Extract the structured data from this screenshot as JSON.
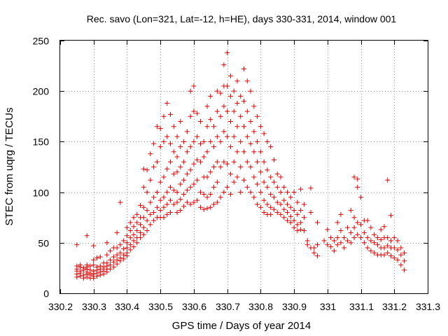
{
  "chart_data": {
    "type": "scatter",
    "title": "Rec. savo (Lon=321, Lat=-12, h=HE), days 330-331, 2014, window 001",
    "xlabel": "GPS time / Days of year 2014",
    "ylabel": "STEC from uqrg / TECUs",
    "xlim": [
      330.2,
      331.3
    ],
    "ylim": [
      0,
      250
    ],
    "grid": true,
    "xticks": [
      "330.2",
      "330.3",
      "330.4",
      "330.5",
      "330.6",
      "330.7",
      "330.8",
      "330.9",
      "331",
      "331.1",
      "331.2",
      "331.3"
    ],
    "yticks": [
      "0",
      "50",
      "100",
      "150",
      "200",
      "250"
    ],
    "marker": "+",
    "color": "#e00000",
    "points": [
      [
        330.25,
        48
      ],
      [
        330.25,
        27
      ],
      [
        330.25,
        24
      ],
      [
        330.25,
        22
      ],
      [
        330.25,
        19
      ],
      [
        330.25,
        16
      ],
      [
        330.26,
        28
      ],
      [
        330.26,
        26
      ],
      [
        330.26,
        22
      ],
      [
        330.26,
        20
      ],
      [
        330.26,
        17
      ],
      [
        330.27,
        25
      ],
      [
        330.27,
        23
      ],
      [
        330.27,
        18
      ],
      [
        330.27,
        15
      ],
      [
        330.28,
        57
      ],
      [
        330.28,
        28
      ],
      [
        330.28,
        26
      ],
      [
        330.28,
        24
      ],
      [
        330.28,
        21
      ],
      [
        330.28,
        19
      ],
      [
        330.28,
        16
      ],
      [
        330.29,
        27
      ],
      [
        330.29,
        23
      ],
      [
        330.29,
        20
      ],
      [
        330.29,
        18
      ],
      [
        330.29,
        15
      ],
      [
        330.3,
        47
      ],
      [
        330.3,
        33
      ],
      [
        330.3,
        28
      ],
      [
        330.3,
        22
      ],
      [
        330.3,
        19
      ],
      [
        330.3,
        17
      ],
      [
        330.3,
        15
      ],
      [
        330.31,
        35
      ],
      [
        330.31,
        26
      ],
      [
        330.31,
        23
      ],
      [
        330.31,
        20
      ],
      [
        330.31,
        17
      ],
      [
        330.32,
        36
      ],
      [
        330.32,
        27
      ],
      [
        330.32,
        24
      ],
      [
        330.32,
        21
      ],
      [
        330.32,
        18
      ],
      [
        330.33,
        30
      ],
      [
        330.33,
        26
      ],
      [
        330.33,
        24
      ],
      [
        330.33,
        22
      ],
      [
        330.33,
        19
      ],
      [
        330.34,
        50
      ],
      [
        330.34,
        38
      ],
      [
        330.34,
        30
      ],
      [
        330.34,
        27
      ],
      [
        330.34,
        24
      ],
      [
        330.34,
        21
      ],
      [
        330.35,
        42
      ],
      [
        330.35,
        33
      ],
      [
        330.35,
        28
      ],
      [
        330.35,
        24
      ],
      [
        330.36,
        45
      ],
      [
        330.36,
        36
      ],
      [
        330.36,
        31
      ],
      [
        330.36,
        26
      ],
      [
        330.37,
        60
      ],
      [
        330.37,
        45
      ],
      [
        330.37,
        38
      ],
      [
        330.37,
        33
      ],
      [
        330.37,
        29
      ],
      [
        330.38,
        90
      ],
      [
        330.38,
        48
      ],
      [
        330.38,
        40
      ],
      [
        330.38,
        35
      ],
      [
        330.38,
        32
      ],
      [
        330.39,
        52
      ],
      [
        330.39,
        44
      ],
      [
        330.39,
        38
      ],
      [
        330.39,
        34
      ],
      [
        330.4,
        65
      ],
      [
        330.4,
        57
      ],
      [
        330.4,
        50
      ],
      [
        330.4,
        45
      ],
      [
        330.4,
        40
      ],
      [
        330.4,
        37
      ],
      [
        330.41,
        70
      ],
      [
        330.41,
        62
      ],
      [
        330.41,
        55
      ],
      [
        330.41,
        48
      ],
      [
        330.41,
        43
      ],
      [
        330.42,
        75
      ],
      [
        330.42,
        66
      ],
      [
        330.42,
        58
      ],
      [
        330.42,
        52
      ],
      [
        330.42,
        46
      ],
      [
        330.43,
        78
      ],
      [
        330.43,
        70
      ],
      [
        330.43,
        62
      ],
      [
        330.43,
        55
      ],
      [
        330.43,
        50
      ],
      [
        330.44,
        87
      ],
      [
        330.44,
        75
      ],
      [
        330.44,
        68
      ],
      [
        330.44,
        60
      ],
      [
        330.44,
        55
      ],
      [
        330.45,
        123
      ],
      [
        330.45,
        105
      ],
      [
        330.45,
        85
      ],
      [
        330.45,
        75
      ],
      [
        330.45,
        65
      ],
      [
        330.45,
        58
      ],
      [
        330.46,
        122
      ],
      [
        330.46,
        100
      ],
      [
        330.46,
        82
      ],
      [
        330.46,
        72
      ],
      [
        330.46,
        62
      ],
      [
        330.47,
        138
      ],
      [
        330.47,
        112
      ],
      [
        330.47,
        90
      ],
      [
        330.47,
        78
      ],
      [
        330.47,
        68
      ],
      [
        330.48,
        148
      ],
      [
        330.48,
        125
      ],
      [
        330.48,
        95
      ],
      [
        330.48,
        80
      ],
      [
        330.48,
        72
      ],
      [
        330.49,
        165
      ],
      [
        330.49,
        130
      ],
      [
        330.49,
        100
      ],
      [
        330.49,
        85
      ],
      [
        330.49,
        75
      ],
      [
        330.5,
        163
      ],
      [
        330.5,
        145
      ],
      [
        330.5,
        110
      ],
      [
        330.5,
        92
      ],
      [
        330.5,
        82
      ],
      [
        330.5,
        75
      ],
      [
        330.51,
        175
      ],
      [
        330.51,
        150
      ],
      [
        330.51,
        115
      ],
      [
        330.51,
        95
      ],
      [
        330.51,
        85
      ],
      [
        330.51,
        75
      ],
      [
        330.52,
        188
      ],
      [
        330.52,
        155
      ],
      [
        330.52,
        123
      ],
      [
        330.52,
        100
      ],
      [
        330.52,
        88
      ],
      [
        330.52,
        78
      ],
      [
        330.53,
        177
      ],
      [
        330.53,
        148
      ],
      [
        330.53,
        130
      ],
      [
        330.53,
        105
      ],
      [
        330.53,
        92
      ],
      [
        330.53,
        80
      ],
      [
        330.54,
        165
      ],
      [
        330.54,
        140
      ],
      [
        330.54,
        118
      ],
      [
        330.54,
        102
      ],
      [
        330.54,
        88
      ],
      [
        330.55,
        155
      ],
      [
        330.55,
        135
      ],
      [
        330.55,
        120
      ],
      [
        330.55,
        100
      ],
      [
        330.55,
        90
      ],
      [
        330.55,
        80
      ],
      [
        330.56,
        170
      ],
      [
        330.56,
        145
      ],
      [
        330.56,
        125
      ],
      [
        330.56,
        108
      ],
      [
        330.56,
        93
      ],
      [
        330.56,
        82
      ],
      [
        330.57,
        150
      ],
      [
        330.57,
        130
      ],
      [
        330.57,
        112
      ],
      [
        330.57,
        98
      ],
      [
        330.57,
        86
      ],
      [
        330.58,
        160
      ],
      [
        330.58,
        140
      ],
      [
        330.58,
        118
      ],
      [
        330.58,
        102
      ],
      [
        330.58,
        90
      ],
      [
        330.59,
        200
      ],
      [
        330.59,
        175
      ],
      [
        330.59,
        145
      ],
      [
        330.59,
        122
      ],
      [
        330.59,
        105
      ],
      [
        330.59,
        88
      ],
      [
        330.6,
        205
      ],
      [
        330.6,
        180
      ],
      [
        330.6,
        150
      ],
      [
        330.6,
        128
      ],
      [
        330.6,
        108
      ],
      [
        330.6,
        90
      ],
      [
        330.61,
        178
      ],
      [
        330.61,
        155
      ],
      [
        330.61,
        132
      ],
      [
        330.61,
        112
      ],
      [
        330.61,
        92
      ],
      [
        330.62,
        170
      ],
      [
        330.62,
        148
      ],
      [
        330.62,
        130
      ],
      [
        330.62,
        100
      ],
      [
        330.62,
        85
      ],
      [
        330.63,
        150
      ],
      [
        330.63,
        135
      ],
      [
        330.63,
        115
      ],
      [
        330.63,
        98
      ],
      [
        330.63,
        83
      ],
      [
        330.64,
        185
      ],
      [
        330.64,
        165
      ],
      [
        330.64,
        140
      ],
      [
        330.64,
        115
      ],
      [
        330.64,
        95
      ],
      [
        330.64,
        84
      ],
      [
        330.65,
        195
      ],
      [
        330.65,
        172
      ],
      [
        330.65,
        150
      ],
      [
        330.65,
        120
      ],
      [
        330.65,
        98
      ],
      [
        330.65,
        85
      ],
      [
        330.66,
        165
      ],
      [
        330.66,
        145
      ],
      [
        330.66,
        125
      ],
      [
        330.66,
        105
      ],
      [
        330.66,
        88
      ],
      [
        330.67,
        200
      ],
      [
        330.67,
        180
      ],
      [
        330.67,
        155
      ],
      [
        330.67,
        130
      ],
      [
        330.67,
        110
      ],
      [
        330.67,
        90
      ],
      [
        330.68,
        198
      ],
      [
        330.68,
        175
      ],
      [
        330.68,
        150
      ],
      [
        330.68,
        125
      ],
      [
        330.68,
        95
      ],
      [
        330.69,
        226
      ],
      [
        330.69,
        205
      ],
      [
        330.69,
        185
      ],
      [
        330.69,
        160
      ],
      [
        330.69,
        130
      ],
      [
        330.69,
        100
      ],
      [
        330.7,
        238
      ],
      [
        330.7,
        205
      ],
      [
        330.7,
        180
      ],
      [
        330.7,
        155
      ],
      [
        330.7,
        128
      ],
      [
        330.7,
        105
      ],
      [
        330.71,
        215
      ],
      [
        330.71,
        195
      ],
      [
        330.71,
        170
      ],
      [
        330.71,
        145
      ],
      [
        330.71,
        118
      ],
      [
        330.71,
        98
      ],
      [
        330.72,
        200
      ],
      [
        330.72,
        180
      ],
      [
        330.72,
        155
      ],
      [
        330.72,
        130
      ],
      [
        330.72,
        110
      ],
      [
        330.73,
        210
      ],
      [
        330.73,
        188
      ],
      [
        330.73,
        165
      ],
      [
        330.73,
        140
      ],
      [
        330.73,
        115
      ],
      [
        330.74,
        195
      ],
      [
        330.74,
        175
      ],
      [
        330.74,
        150
      ],
      [
        330.74,
        125
      ],
      [
        330.74,
        100
      ],
      [
        330.75,
        222
      ],
      [
        330.75,
        190
      ],
      [
        330.75,
        165
      ],
      [
        330.75,
        140
      ],
      [
        330.75,
        112
      ],
      [
        330.76,
        210
      ],
      [
        330.76,
        180
      ],
      [
        330.76,
        155
      ],
      [
        330.76,
        130
      ],
      [
        330.76,
        105
      ],
      [
        330.77,
        200
      ],
      [
        330.77,
        170
      ],
      [
        330.77,
        148
      ],
      [
        330.77,
        125
      ],
      [
        330.77,
        100
      ],
      [
        330.78,
        185
      ],
      [
        330.78,
        160
      ],
      [
        330.78,
        140
      ],
      [
        330.78,
        115
      ],
      [
        330.78,
        95
      ],
      [
        330.79,
        175
      ],
      [
        330.79,
        150
      ],
      [
        330.79,
        130
      ],
      [
        330.79,
        108
      ],
      [
        330.79,
        88
      ],
      [
        330.8,
        165
      ],
      [
        330.8,
        140
      ],
      [
        330.8,
        120
      ],
      [
        330.8,
        100
      ],
      [
        330.8,
        85
      ],
      [
        330.81,
        158
      ],
      [
        330.81,
        130
      ],
      [
        330.81,
        110
      ],
      [
        330.81,
        92
      ],
      [
        330.81,
        80
      ],
      [
        330.82,
        150
      ],
      [
        330.82,
        122
      ],
      [
        330.82,
        105
      ],
      [
        330.82,
        88
      ],
      [
        330.82,
        78
      ],
      [
        330.83,
        145
      ],
      [
        330.83,
        115
      ],
      [
        330.83,
        98
      ],
      [
        330.83,
        85
      ],
      [
        330.83,
        78
      ],
      [
        330.84,
        132
      ],
      [
        330.84,
        110
      ],
      [
        330.84,
        95
      ],
      [
        330.84,
        83
      ],
      [
        330.85,
        118
      ],
      [
        330.85,
        105
      ],
      [
        330.85,
        90
      ],
      [
        330.85,
        80
      ],
      [
        330.86,
        115
      ],
      [
        330.86,
        100
      ],
      [
        330.86,
        88
      ],
      [
        330.86,
        78
      ],
      [
        330.87,
        105
      ],
      [
        330.87,
        92
      ],
      [
        330.87,
        83
      ],
      [
        330.87,
        75
      ],
      [
        330.88,
        100
      ],
      [
        330.88,
        88
      ],
      [
        330.88,
        80
      ],
      [
        330.88,
        72
      ],
      [
        330.89,
        95
      ],
      [
        330.89,
        85
      ],
      [
        330.89,
        76
      ],
      [
        330.89,
        70
      ],
      [
        330.9,
        100
      ],
      [
        330.9,
        82
      ],
      [
        330.9,
        72
      ],
      [
        330.9,
        65
      ],
      [
        330.91,
        90
      ],
      [
        330.91,
        78
      ],
      [
        330.91,
        68
      ],
      [
        330.91,
        62
      ],
      [
        330.92,
        103
      ],
      [
        330.92,
        82
      ],
      [
        330.92,
        70
      ],
      [
        330.92,
        63
      ],
      [
        330.93,
        88
      ],
      [
        330.93,
        75
      ],
      [
        330.93,
        62
      ],
      [
        330.94,
        52
      ],
      [
        330.94,
        48
      ],
      [
        330.95,
        104
      ],
      [
        330.95,
        80
      ],
      [
        330.95,
        45
      ],
      [
        330.96,
        45
      ],
      [
        330.96,
        40
      ],
      [
        330.97,
        70
      ],
      [
        330.97,
        48
      ],
      [
        330.97,
        37
      ],
      [
        330.99,
        52
      ],
      [
        331.0,
        63
      ],
      [
        331.0,
        48
      ],
      [
        331.01,
        55
      ],
      [
        331.01,
        46
      ],
      [
        331.02,
        52
      ],
      [
        331.02,
        42
      ],
      [
        331.03,
        70
      ],
      [
        331.03,
        55
      ],
      [
        331.03,
        48
      ],
      [
        331.04,
        78
      ],
      [
        331.04,
        62
      ],
      [
        331.04,
        50
      ],
      [
        331.05,
        55
      ],
      [
        331.05,
        45
      ],
      [
        331.06,
        65
      ],
      [
        331.06,
        52
      ],
      [
        331.07,
        82
      ],
      [
        331.07,
        60
      ],
      [
        331.07,
        50
      ],
      [
        331.08,
        115
      ],
      [
        331.08,
        75
      ],
      [
        331.08,
        65
      ],
      [
        331.08,
        55
      ],
      [
        331.09,
        113
      ],
      [
        331.09,
        105
      ],
      [
        331.09,
        70
      ],
      [
        331.09,
        58
      ],
      [
        331.1,
        95
      ],
      [
        331.1,
        68
      ],
      [
        331.1,
        55
      ],
      [
        331.11,
        72
      ],
      [
        331.11,
        60
      ],
      [
        331.11,
        50
      ],
      [
        331.12,
        72
      ],
      [
        331.12,
        55
      ],
      [
        331.12,
        45
      ],
      [
        331.13,
        65
      ],
      [
        331.13,
        52
      ],
      [
        331.13,
        42
      ],
      [
        331.14,
        58
      ],
      [
        331.14,
        50
      ],
      [
        331.14,
        40
      ],
      [
        331.15,
        55
      ],
      [
        331.15,
        48
      ],
      [
        331.15,
        38
      ],
      [
        331.16,
        63
      ],
      [
        331.16,
        53
      ],
      [
        331.16,
        45
      ],
      [
        331.16,
        38
      ],
      [
        331.17,
        66
      ],
      [
        331.17,
        55
      ],
      [
        331.17,
        45
      ],
      [
        331.17,
        38
      ],
      [
        331.18,
        112
      ],
      [
        331.18,
        55
      ],
      [
        331.18,
        47
      ],
      [
        331.18,
        40
      ],
      [
        331.19,
        77
      ],
      [
        331.19,
        52
      ],
      [
        331.19,
        45
      ],
      [
        331.19,
        37
      ],
      [
        331.2,
        55
      ],
      [
        331.2,
        45
      ],
      [
        331.2,
        35
      ],
      [
        331.21,
        52
      ],
      [
        331.21,
        43
      ],
      [
        331.21,
        33
      ],
      [
        331.22,
        45
      ],
      [
        331.22,
        38
      ],
      [
        331.22,
        28
      ],
      [
        331.23,
        40
      ],
      [
        331.23,
        32
      ],
      [
        331.23,
        23
      ]
    ]
  }
}
